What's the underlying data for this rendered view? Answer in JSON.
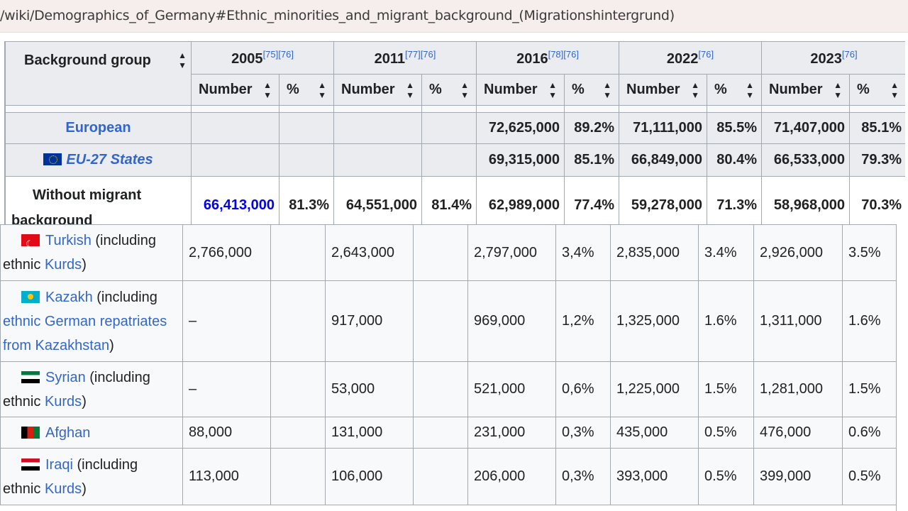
{
  "browser": {
    "url": "/wiki/Demographics_of_Germany#Ethnic_minorities_and_migrant_background_(Migrationshintergrund)"
  },
  "table": {
    "group_header": "Background group",
    "years": [
      {
        "year": "2005",
        "refs": "[75][76]"
      },
      {
        "year": "2011",
        "refs": "[77][76]"
      },
      {
        "year": "2016",
        "refs": "[78][76]"
      },
      {
        "year": "2022",
        "refs": "[76]"
      },
      {
        "year": "2023",
        "refs": "[76]"
      }
    ],
    "sub_headers": {
      "number": "Number",
      "percent": "%"
    },
    "sort_icon": "sort-icon",
    "summary_rows": [
      {
        "label": "European",
        "cells": [
          "",
          "",
          "",
          "",
          "72,625,000",
          "89.2%",
          "71,111,000",
          "85.5%",
          "71,407,000",
          "85.1%"
        ]
      },
      {
        "label": "EU-27 States",
        "icon": "eu-flag-icon",
        "cells": [
          "",
          "",
          "",
          "",
          "69,315,000",
          "85.1%",
          "66,849,000",
          "80.4%",
          "66,533,000",
          "79.3%"
        ]
      },
      {
        "label_line1": "Without migrant",
        "label_line2": "background",
        "cells": [
          "66,413,000",
          "81.3%",
          "64,551,000",
          "81.4%",
          "62,989,000",
          "77.4%",
          "59,278,000",
          "71.3%",
          "58,968,000",
          "70.3%"
        ]
      }
    ],
    "detail_rows": [
      {
        "link": "Turkish",
        "rest1": " (including",
        "line2_plain": "ethnic ",
        "line2_link": "Kurds",
        "line2_end": ")",
        "icon": "turkey-flag-icon",
        "cells": [
          "2,766,000",
          "",
          "2,643,000",
          "",
          "2,797,000",
          "3,4%",
          "2,835,000",
          "3.4%",
          "2,926,000",
          "3.5%"
        ]
      },
      {
        "link": "Kazakh",
        "rest1": " (including",
        "line2_link": "ethnic German repatriates",
        "line3_link": "from Kazakhstan",
        "line3_end": ")",
        "icon": "kazakhstan-flag-icon",
        "cells": [
          "–",
          "",
          "917,000",
          "",
          "969,000",
          "1,2%",
          "1,325,000",
          "1.6%",
          "1,311,000",
          "1.6%"
        ]
      },
      {
        "link": "Syrian",
        "rest1": " (including",
        "line2_plain": "ethnic ",
        "line2_link": "Kurds",
        "line2_end": ")",
        "icon": "syria-flag-icon",
        "cells": [
          "–",
          "",
          "53,000",
          "",
          "521,000",
          "0,6%",
          "1,225,000",
          "1.5%",
          "1,281,000",
          "1.5%"
        ]
      },
      {
        "link": "Afghan",
        "icon": "afghanistan-flag-icon",
        "cells": [
          "88,000",
          "",
          "131,000",
          "",
          "231,000",
          "0,3%",
          "435,000",
          "0.5%",
          "476,000",
          "0.6%"
        ]
      },
      {
        "link": "Iraqi",
        "rest1": " (including",
        "line2_plain": "ethnic ",
        "line2_link": "Kurds",
        "line2_end": ")",
        "icon": "iraq-flag-icon",
        "cells": [
          "113,000",
          "",
          "106,000",
          "",
          "206,000",
          "0,3%",
          "393,000",
          "0.5%",
          "399,000",
          "0.5%"
        ]
      }
    ]
  }
}
